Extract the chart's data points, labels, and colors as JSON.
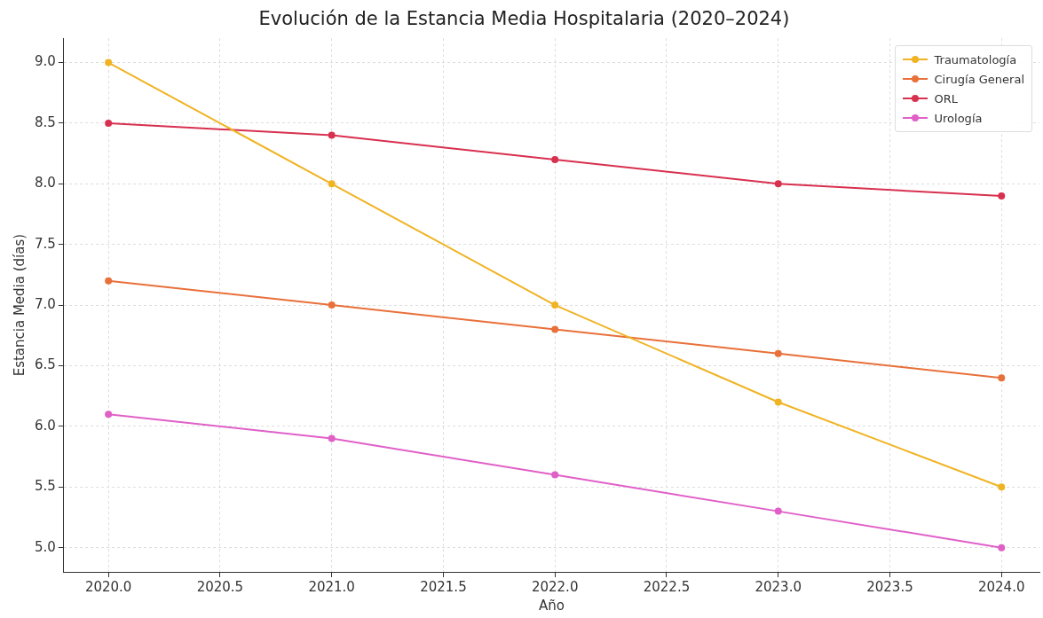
{
  "chart_data": {
    "type": "line",
    "title": "Evolución de la Estancia Media Hospitalaria (2020–2024)",
    "xlabel": "Año",
    "ylabel": "Estancia Media (días)",
    "x": [
      2020,
      2021,
      2022,
      2023,
      2024
    ],
    "series": [
      {
        "name": "Traumatología",
        "color": "#f0b323",
        "values": [
          9.0,
          8.0,
          7.0,
          6.2,
          5.5
        ]
      },
      {
        "name": "Cirugía General",
        "color": "#e8703a",
        "values": [
          7.2,
          7.0,
          6.8,
          6.6,
          6.4
        ]
      },
      {
        "name": "ORL",
        "color": "#d8304f",
        "values": [
          8.5,
          8.4,
          8.2,
          8.0,
          7.9
        ]
      },
      {
        "name": "Urología",
        "color": "#e060c8",
        "values": [
          6.1,
          5.9,
          5.6,
          5.3,
          5.0
        ]
      }
    ],
    "xlim": [
      2019.8,
      2024.17
    ],
    "xticks": [
      {
        "value": 2020,
        "label": "2020.0"
      },
      {
        "value": 2020.5,
        "label": "2020.5"
      },
      {
        "value": 2021,
        "label": "2021.0"
      },
      {
        "value": 2021.5,
        "label": "2021.5"
      },
      {
        "value": 2022,
        "label": "2022.0"
      },
      {
        "value": 2022.5,
        "label": "2022.5"
      },
      {
        "value": 2023,
        "label": "2023.0"
      },
      {
        "value": 2023.5,
        "label": "2023.5"
      },
      {
        "value": 2024,
        "label": "2024.0"
      }
    ],
    "ylim": [
      4.8,
      9.2
    ],
    "yticks": [
      {
        "value": 5,
        "label": "5.0"
      },
      {
        "value": 5.5,
        "label": "5.5"
      },
      {
        "value": 6,
        "label": "6.0"
      },
      {
        "value": 6.5,
        "label": "6.5"
      },
      {
        "value": 7,
        "label": "7.0"
      },
      {
        "value": 7.5,
        "label": "7.5"
      },
      {
        "value": 8,
        "label": "8.0"
      },
      {
        "value": 8.5,
        "label": "8.5"
      },
      {
        "value": 9,
        "label": "9.0"
      }
    ],
    "grid": true,
    "legend": "top right",
    "marker": "circle",
    "line_style": "solid"
  }
}
